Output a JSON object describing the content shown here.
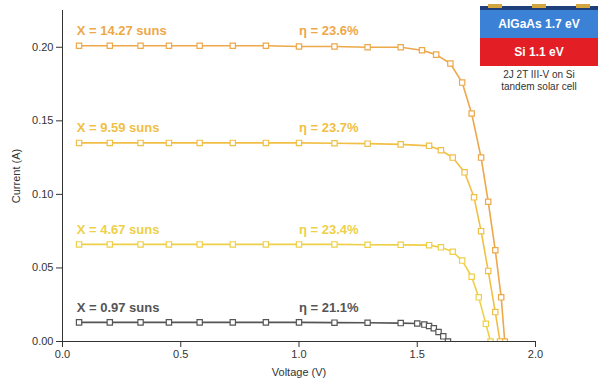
{
  "chart_data": {
    "type": "line",
    "x_label": "Voltage (V)",
    "y_label": "Current (A)",
    "xlim": [
      0,
      2.0
    ],
    "xticks": [
      {
        "value": 0,
        "label": "0.0"
      },
      {
        "value": 0.5,
        "label": "0.5"
      },
      {
        "value": 1.0,
        "label": "1.0"
      },
      {
        "value": 1.5,
        "label": "1.5"
      },
      {
        "value": 2.0,
        "label": "2.0"
      }
    ],
    "ylim": [
      0,
      0.225
    ],
    "yticks": [
      {
        "value": 0,
        "label": "0.00"
      },
      {
        "value": 0.05,
        "label": "0.05"
      },
      {
        "value": 0.1,
        "label": "0.10"
      },
      {
        "value": 0.15,
        "label": "0.15"
      },
      {
        "value": 0.2,
        "label": "0.20"
      }
    ],
    "grid": false,
    "marker": "square",
    "series": [
      {
        "name": "X = 14.27 suns",
        "annotation": "η = 23.6%",
        "color": "#eda84a",
        "x": [
          0.07,
          0.2,
          0.33,
          0.45,
          0.58,
          0.72,
          0.86,
          1.0,
          1.15,
          1.29,
          1.43,
          1.52,
          1.58,
          1.64,
          1.69,
          1.73,
          1.77,
          1.8,
          1.83,
          1.855,
          1.87
        ],
        "values": [
          0.201,
          0.201,
          0.201,
          0.201,
          0.201,
          0.201,
          0.201,
          0.2005,
          0.2005,
          0.2,
          0.2,
          0.198,
          0.195,
          0.189,
          0.176,
          0.155,
          0.125,
          0.095,
          0.062,
          0.03,
          0.0
        ]
      },
      {
        "name": "X = 9.59 suns",
        "annotation": "η = 23.7%",
        "color": "#f0bf45",
        "x": [
          0.07,
          0.2,
          0.33,
          0.45,
          0.58,
          0.72,
          0.86,
          1.0,
          1.15,
          1.29,
          1.43,
          1.55,
          1.6,
          1.65,
          1.7,
          1.74,
          1.77,
          1.8,
          1.83,
          1.85
        ],
        "values": [
          0.135,
          0.135,
          0.135,
          0.135,
          0.135,
          0.135,
          0.135,
          0.135,
          0.1348,
          0.1345,
          0.134,
          0.133,
          0.13,
          0.125,
          0.115,
          0.098,
          0.075,
          0.048,
          0.02,
          0.0
        ]
      },
      {
        "name": "X = 4.67 suns",
        "annotation": "η = 23.4%",
        "color": "#eed048",
        "x": [
          0.07,
          0.2,
          0.33,
          0.45,
          0.58,
          0.72,
          0.86,
          1.0,
          1.15,
          1.29,
          1.43,
          1.55,
          1.6,
          1.65,
          1.69,
          1.73,
          1.76,
          1.79,
          1.81
        ],
        "values": [
          0.066,
          0.066,
          0.066,
          0.066,
          0.066,
          0.066,
          0.066,
          0.066,
          0.066,
          0.0658,
          0.0657,
          0.0655,
          0.064,
          0.061,
          0.055,
          0.044,
          0.03,
          0.012,
          0.0
        ]
      },
      {
        "name": "X = 0.97 suns",
        "annotation": "η = 21.1%",
        "color": "#555555",
        "x": [
          0.07,
          0.2,
          0.33,
          0.45,
          0.58,
          0.72,
          0.86,
          1.0,
          1.15,
          1.29,
          1.43,
          1.5,
          1.53,
          1.55,
          1.57,
          1.59,
          1.61,
          1.63
        ],
        "values": [
          0.013,
          0.013,
          0.013,
          0.013,
          0.013,
          0.013,
          0.013,
          0.013,
          0.0128,
          0.0127,
          0.0125,
          0.0122,
          0.0115,
          0.0105,
          0.009,
          0.0065,
          0.0035,
          0.0
        ]
      }
    ],
    "inset": {
      "layers": [
        {
          "label": "AlGaAs 1.7 eV",
          "color": "#3b82d6"
        },
        {
          "label": "Si 1.1 eV",
          "color": "#e31e24"
        }
      ],
      "caption": [
        "2J 2T III-V on Si",
        "tandem solar cell"
      ]
    }
  }
}
